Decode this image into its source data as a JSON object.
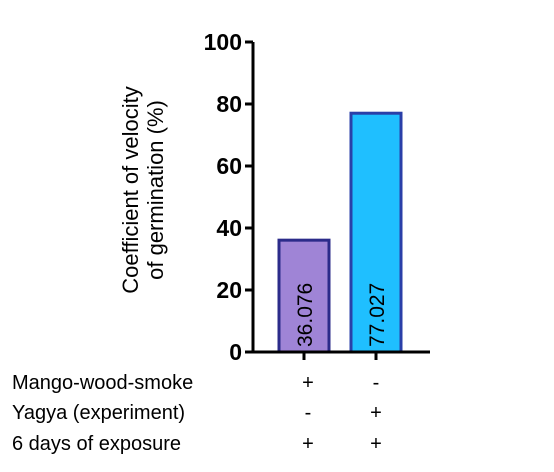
{
  "chart_data": {
    "type": "bar",
    "ylabel_lines": [
      "Coefficient of velocity",
      "of germination (%)"
    ],
    "ylim": [
      0,
      100
    ],
    "yticks": [
      0,
      20,
      40,
      60,
      80,
      100
    ],
    "bars": [
      {
        "value": 36.076,
        "label": "36.076",
        "color": "#9f84d6",
        "edge": "#2b2b8a"
      },
      {
        "value": 77.027,
        "label": "77.027",
        "color": "#1fbfff",
        "edge": "#2a3fa8"
      }
    ],
    "conditions": [
      {
        "label": "Mango-wood-smoke",
        "marks": [
          "+",
          "-"
        ]
      },
      {
        "label": "Yagya (experiment)",
        "marks": [
          "-",
          "+"
        ]
      },
      {
        "label": "6 days of exposure",
        "marks": [
          "+",
          "+"
        ]
      }
    ]
  }
}
